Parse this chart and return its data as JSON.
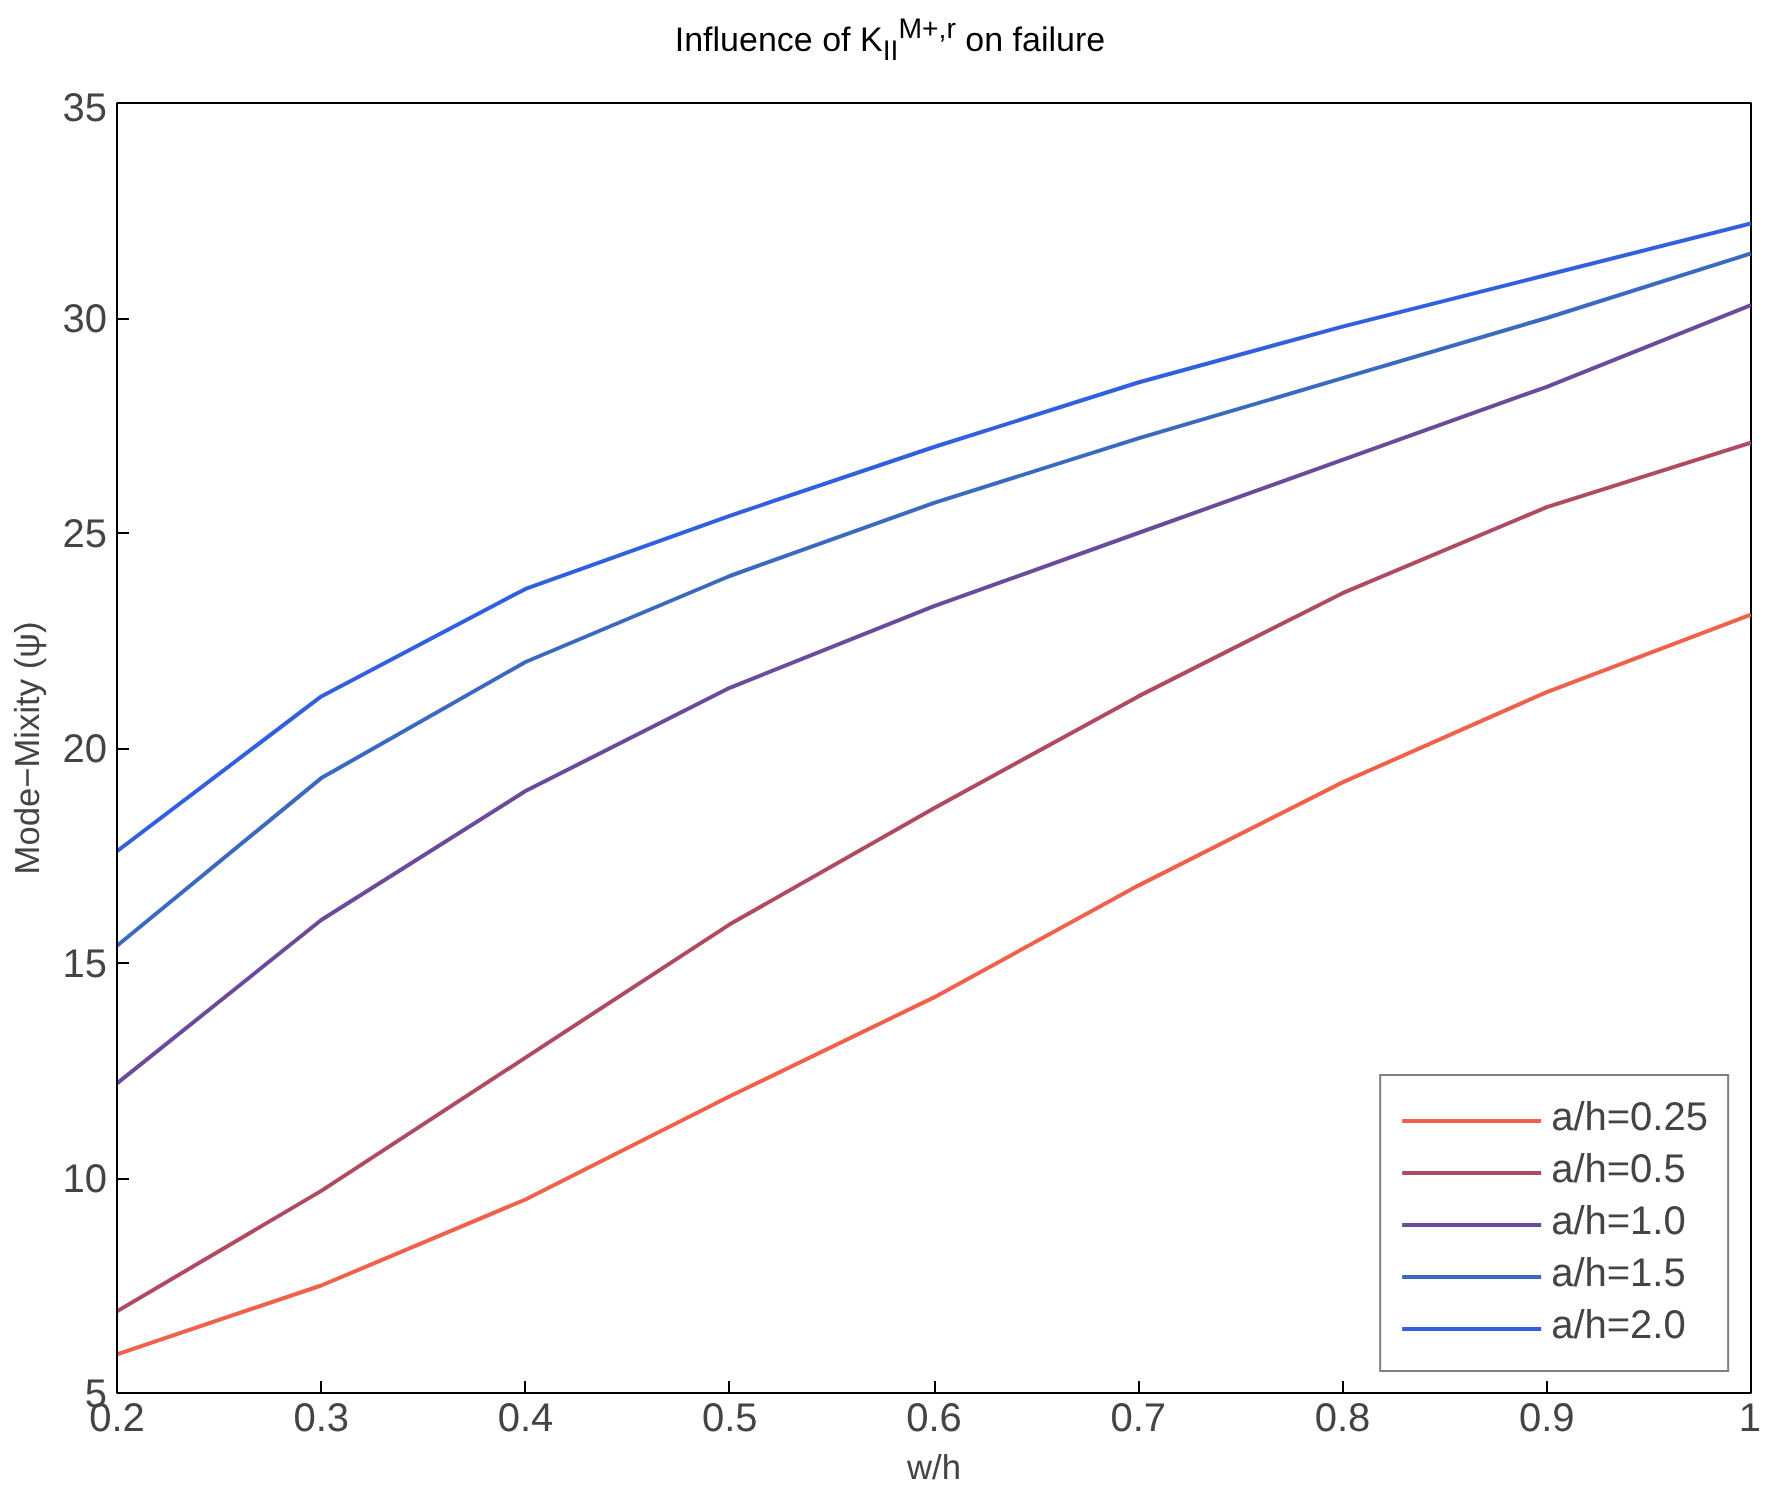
{
  "chart_data": {
    "type": "line",
    "title": "Influence of K$_{II}$$^{M+,r}$ on failure",
    "xlabel": "w/h",
    "ylabel": "Mode−Mixity (ψ)",
    "x": [
      0.2,
      0.3,
      0.4,
      0.5,
      0.6,
      0.7,
      0.8,
      0.9,
      1.0
    ],
    "series": [
      {
        "name": "a/h=0.25",
        "color": "#f0604a",
        "values": [
          5.9,
          7.5,
          9.5,
          11.9,
          14.2,
          16.8,
          19.2,
          21.3,
          23.1
        ]
      },
      {
        "name": "a/h=0.5",
        "color": "#b04a60",
        "values": [
          6.9,
          9.7,
          12.8,
          15.9,
          18.6,
          21.2,
          23.6,
          25.6,
          27.1
        ]
      },
      {
        "name": "a/h=1.0",
        "color": "#6a4a9a",
        "values": [
          12.2,
          16.0,
          19.0,
          21.4,
          23.3,
          25.0,
          26.7,
          28.4,
          30.3
        ]
      },
      {
        "name": "a/h=1.5",
        "color": "#3a6ac0",
        "values": [
          15.4,
          19.3,
          22.0,
          24.0,
          25.7,
          27.2,
          28.6,
          30.0,
          31.5
        ]
      },
      {
        "name": "a/h=2.0",
        "color": "#3060e0",
        "values": [
          17.6,
          21.2,
          23.7,
          25.4,
          27.0,
          28.5,
          29.8,
          31.0,
          32.2
        ]
      }
    ],
    "xlim": [
      0.2,
      1.0
    ],
    "ylim": [
      5,
      35
    ],
    "xticks": [
      0.2,
      0.3,
      0.4,
      0.5,
      0.6,
      0.7,
      0.8,
      0.9,
      {
        "value": 1.0,
        "label": "1"
      }
    ],
    "yticks": [
      5,
      10,
      15,
      20,
      25,
      30,
      35
    ],
    "grid": false,
    "legend": "bottom right",
    "line_style": "solid",
    "marker": "none"
  }
}
